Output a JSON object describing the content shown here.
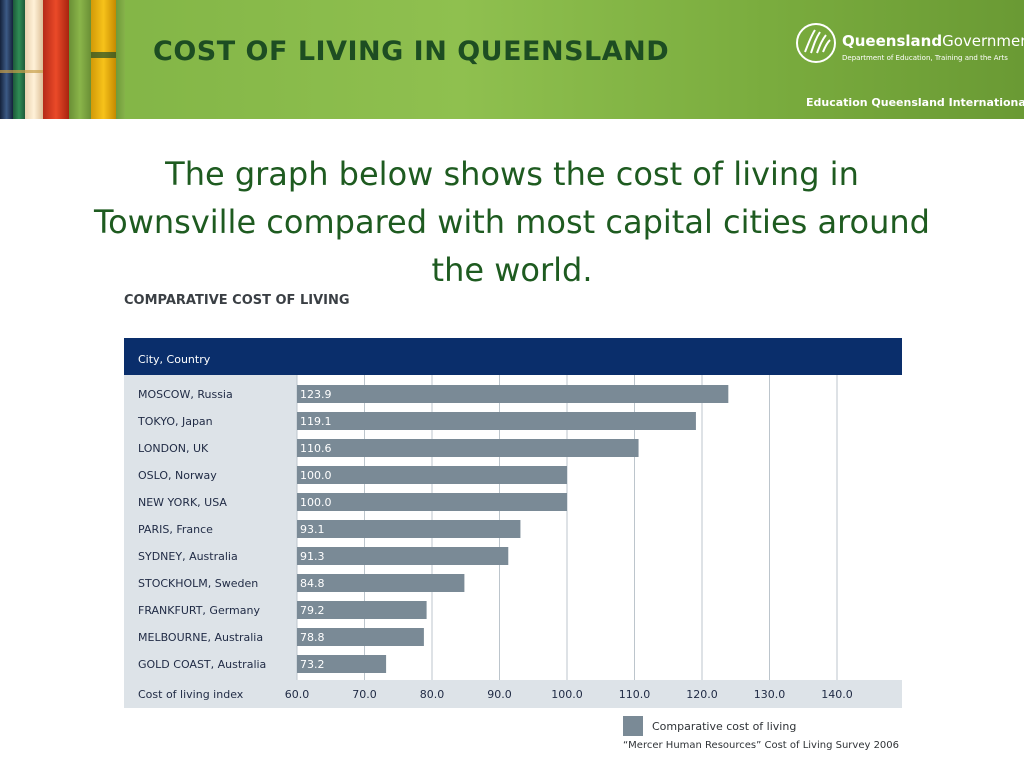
{
  "header": {
    "title": "COST OF LIVING IN QUEENSLAND",
    "logo_name_bold": "Queensland",
    "logo_name_rest": "Government",
    "logo_subtitle": "Department of Education, Training and the Arts",
    "unit": "Education Queensland International"
  },
  "intro_text": "The graph below shows the cost of living in Townsville compared with most capital cities around the world.",
  "chart_data": {
    "type": "bar",
    "orientation": "horizontal",
    "title": "COMPARATIVE COST OF LIVING",
    "category_header": "City, Country",
    "xlabel": "Cost of living index",
    "xlim": [
      60,
      140
    ],
    "xticks": [
      "60.0",
      "70.0",
      "80.0",
      "90.0",
      "100.0",
      "110.0",
      "120.0",
      "130.0",
      "140.0"
    ],
    "categories": [
      "MOSCOW, Russia",
      "TOKYO, Japan",
      "LONDON, UK",
      "OSLO, Norway",
      "NEW YORK, USA",
      "PARIS, France",
      "SYDNEY, Australia",
      "STOCKHOLM, Sweden",
      "FRANKFURT, Germany",
      "MELBOURNE, Australia",
      "GOLD COAST, Australia"
    ],
    "values": [
      123.9,
      119.1,
      110.6,
      100.0,
      100.0,
      93.1,
      91.3,
      84.8,
      79.2,
      78.8,
      73.2
    ],
    "value_labels": [
      "123.9",
      "119.1",
      "110.6",
      "100.0",
      "100.0",
      "93.1",
      "91.3",
      "84.8",
      "79.2",
      "78.8",
      "73.2"
    ],
    "grid": true,
    "legend": {
      "position": "bottom-right",
      "label": "Comparative cost of living",
      "source": "“Mercer Human Resources” Cost of Living Survey 2006"
    },
    "colors": {
      "bar": "#7a8a96",
      "header": "#0a2e6b",
      "panel": "#dde3e8",
      "grid": "#bcc5cc"
    }
  }
}
